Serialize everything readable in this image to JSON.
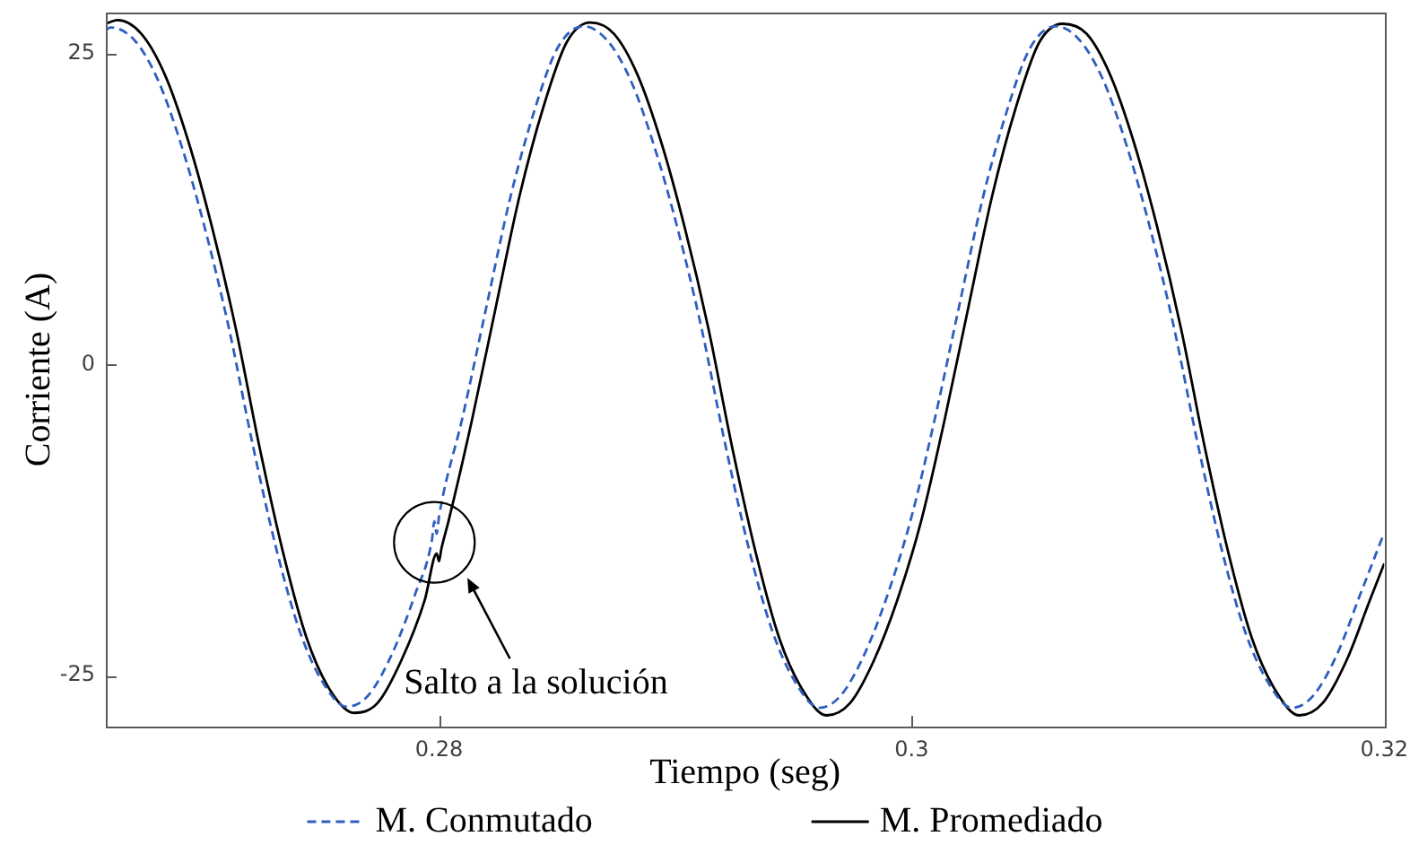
{
  "chart_data": {
    "type": "line",
    "xlabel": "Tiempo (seg)",
    "ylabel": "Corriente (A)",
    "xlim": [
      0.2659,
      0.32
    ],
    "ylim": [
      -29.1,
      28.3
    ],
    "xticks": [
      0.28,
      0.3,
      0.32
    ],
    "yticks": [
      -25,
      0,
      25
    ],
    "legend": "bottom",
    "marker": "none",
    "series": [
      {
        "name": "M. Conmutado",
        "color": "#2e5fc0",
        "line_style": "dashed",
        "x": [
          0.2659,
          0.2661,
          0.2671,
          0.2681,
          0.2691,
          0.2701,
          0.2711,
          0.2721,
          0.2731,
          0.2741,
          0.2751,
          0.2761,
          0.277,
          0.278,
          0.279,
          0.2797,
          0.2798,
          0.2799,
          0.28,
          0.281,
          0.282,
          0.283,
          0.284,
          0.285,
          0.2861,
          0.2871,
          0.2881,
          0.2891,
          0.2901,
          0.2911,
          0.2921,
          0.2931,
          0.2941,
          0.2951,
          0.2961,
          0.297,
          0.298,
          0.299,
          0.3,
          0.301,
          0.302,
          0.303,
          0.304,
          0.305,
          0.3061,
          0.3071,
          0.3081,
          0.3091,
          0.3101,
          0.3111,
          0.3121,
          0.3131,
          0.3141,
          0.3151,
          0.3161,
          0.317,
          0.318,
          0.319,
          0.32
        ],
        "values": [
          26.9,
          27.1,
          26.1,
          22.9,
          17.6,
          10.9,
          3.0,
          -6.3,
          -14.7,
          -21.4,
          -25.6,
          -27.5,
          -26.6,
          -23.3,
          -18.4,
          -14.1,
          -12.6,
          -13.6,
          -12.2,
          -4.2,
          4.6,
          13.3,
          20.2,
          25.4,
          27.2,
          26.1,
          22.9,
          17.6,
          10.9,
          3.0,
          -6.3,
          -14.7,
          -21.4,
          -25.6,
          -27.6,
          -26.6,
          -23.3,
          -18.4,
          -12.2,
          -4.2,
          4.6,
          13.3,
          20.2,
          25.4,
          27.2,
          26.1,
          22.9,
          17.6,
          10.9,
          3.0,
          -6.3,
          -14.7,
          -21.4,
          -25.6,
          -27.6,
          -26.6,
          -23.3,
          -18.4,
          -13.5
        ]
      },
      {
        "name": "M. Promediado",
        "color": "#000000",
        "line_style": "solid",
        "x": [
          0.2659,
          0.2664,
          0.2674,
          0.2684,
          0.2694,
          0.2704,
          0.2714,
          0.2724,
          0.2734,
          0.2744,
          0.2754,
          0.2764,
          0.2774,
          0.2784,
          0.2794,
          0.2799,
          0.28,
          0.2801,
          0.2804,
          0.2814,
          0.2824,
          0.2834,
          0.2844,
          0.2854,
          0.2864,
          0.2874,
          0.2884,
          0.2894,
          0.2904,
          0.2914,
          0.2924,
          0.2934,
          0.2944,
          0.2954,
          0.2964,
          0.2974,
          0.2984,
          0.2994,
          0.3004,
          0.3014,
          0.3024,
          0.3034,
          0.3044,
          0.3054,
          0.3064,
          0.3074,
          0.3084,
          0.3094,
          0.3104,
          0.3114,
          0.3124,
          0.3134,
          0.3144,
          0.3154,
          0.3164,
          0.3174,
          0.3184,
          0.3194,
          0.32
        ],
        "values": [
          27.4,
          27.7,
          26.6,
          23.3,
          17.9,
          11.0,
          2.9,
          -6.6,
          -15.1,
          -22.0,
          -26.2,
          -28.0,
          -27.2,
          -23.8,
          -18.9,
          -15.2,
          -15.8,
          -14.8,
          -12.6,
          -4.4,
          4.6,
          13.5,
          20.6,
          25.9,
          27.5,
          26.6,
          23.3,
          17.9,
          11.0,
          2.9,
          -6.6,
          -15.1,
          -22.0,
          -26.2,
          -28.2,
          -27.2,
          -23.8,
          -18.9,
          -12.6,
          -4.4,
          4.6,
          13.5,
          20.6,
          25.9,
          27.4,
          26.6,
          23.3,
          17.9,
          11.0,
          2.9,
          -6.6,
          -15.1,
          -22.0,
          -26.2,
          -28.2,
          -27.2,
          -23.8,
          -18.9,
          -16.0
        ]
      }
    ],
    "annotations": [
      "Salto a la solución"
    ]
  }
}
